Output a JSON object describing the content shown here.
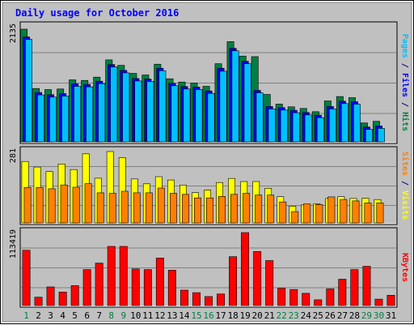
{
  "chart_data": {
    "type": "bar",
    "title": "Daily usage for October 2016",
    "categories": [
      "1",
      "2",
      "3",
      "4",
      "5",
      "6",
      "7",
      "8",
      "9",
      "10",
      "11",
      "12",
      "13",
      "14",
      "15",
      "16",
      "17",
      "18",
      "19",
      "20",
      "21",
      "22",
      "23",
      "24",
      "25",
      "26",
      "27",
      "28",
      "29",
      "30",
      "31"
    ],
    "weekend_days": [
      "1",
      "8",
      "9",
      "15",
      "16",
      "22",
      "23",
      "29",
      "30"
    ],
    "panels": [
      {
        "id": "pages-files-hits",
        "max_label": "2135",
        "ymax": 2135,
        "side_label": [
          {
            "text": "Pages",
            "color": "#00c0ff"
          },
          {
            "text": " / ",
            "color": "#000080"
          },
          {
            "text": "Files",
            "color": "#0000ff"
          },
          {
            "text": " / ",
            "color": "#000080"
          },
          {
            "text": "Hits",
            "color": "#008040"
          }
        ],
        "series": [
          {
            "name": "Hits",
            "color": "#008040",
            "values": [
              2090,
              990,
              970,
              980,
              1150,
              1140,
              1200,
              1520,
              1420,
              1270,
              1240,
              1440,
              1170,
              1110,
              1090,
              1030,
              1450,
              1860,
              1590,
              1580,
              880,
              700,
              650,
              620,
              560,
              760,
              840,
              820,
              350,
              380,
              0
            ]
          },
          {
            "name": "Files",
            "color": "#0000ff",
            "values": [
              1990,
              960,
              920,
              940,
              1120,
              1110,
              1170,
              1480,
              1370,
              1220,
              1210,
              1410,
              1130,
              1070,
              1060,
              990,
              1410,
              1780,
              1540,
              1000,
              700,
              680,
              630,
              590,
              540,
              700,
              800,
              790,
              320,
              340,
              0
            ]
          },
          {
            "name": "Pages",
            "color": "#00c0ff",
            "values": [
              1990,
              960,
              920,
              940,
              1120,
              1110,
              1170,
              1480,
              1370,
              1220,
              1210,
              1410,
              1130,
              1070,
              1060,
              990,
              1400,
              1780,
              1540,
              1000,
              700,
              680,
              630,
              590,
              540,
              700,
              800,
              790,
              320,
              340,
              0
            ]
          }
        ]
      },
      {
        "id": "visits-sites",
        "max_label": "281",
        "ymax": 281,
        "side_label": [
          {
            "text": "Sites",
            "color": "#ff8000"
          },
          {
            "text": " / ",
            "color": "#000080"
          },
          {
            "text": "Visits",
            "color": "#ffff00"
          }
        ],
        "series": [
          {
            "name": "Visits",
            "color": "#ffff00",
            "values": [
              242,
              220,
              202,
              232,
              210,
              272,
              176,
              281,
              257,
              173,
              154,
              182,
              169,
              149,
              119,
              129,
              159,
              175,
              163,
              163,
              136,
              103,
              66,
              71,
              75,
              96,
              103,
              96,
              97,
              92,
              0
            ]
          },
          {
            "name": "Sites",
            "color": "#ff8000",
            "values": [
              149,
              149,
              144,
              159,
              150,
              164,
              128,
              126,
              134,
              128,
              128,
              147,
              126,
              122,
              108,
              108,
              114,
              122,
              126,
              119,
              119,
              92,
              54,
              84,
              82,
              112,
              102,
              96,
              88,
              88,
              0
            ]
          }
        ]
      },
      {
        "id": "kbytes",
        "max_label": "113419",
        "ymax": 113419,
        "side_label": [
          {
            "text": "KBytes",
            "color": "#ff0000"
          }
        ],
        "series": [
          {
            "name": "KBytes",
            "color": "#ff0000",
            "values": [
              86000,
              13000,
              29000,
              21000,
              31000,
              56000,
              66000,
              92000,
              92000,
              57000,
              56000,
              74000,
              55000,
              24000,
              20000,
              14000,
              18000,
              76000,
              113419,
              84000,
              70000,
              27000,
              25000,
              19000,
              9000,
              26000,
              41000,
              56000,
              61000,
              10000,
              16000
            ]
          }
        ]
      }
    ]
  },
  "colors": {
    "title": "#0000ff",
    "background": "#c0c0c0",
    "plot_area": "#c0c0c0",
    "gridline": "#808080",
    "weekday_label": "#000000",
    "weekend_label": "#008040"
  }
}
